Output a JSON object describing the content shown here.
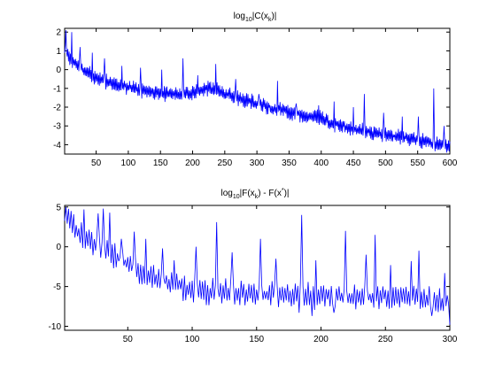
{
  "chart_data": [
    {
      "type": "line",
      "title": {
        "pre": "log",
        "base": "10",
        "mid": "|C(x",
        "idx": "k",
        "post": ")|"
      },
      "xlabel": "",
      "ylabel": "",
      "xlim": [
        1,
        600
      ],
      "ylim": [
        -4.5,
        2.2
      ],
      "xticks": [
        50,
        100,
        150,
        200,
        250,
        300,
        350,
        400,
        450,
        500,
        550,
        600
      ],
      "yticks": [
        2,
        1,
        0,
        -1,
        -2,
        -3,
        -4
      ],
      "grid": false,
      "series": [
        {
          "color": "#0000ff",
          "x": [
            1,
            5,
            10,
            20,
            30,
            50,
            75,
            100,
            125,
            150,
            175,
            200,
            225,
            235,
            250,
            275,
            300,
            325,
            350,
            375,
            400,
            425,
            450,
            475,
            500,
            525,
            550,
            575,
            600
          ],
          "baseline": [
            1.0,
            0.75,
            0.55,
            0.25,
            0.0,
            -0.45,
            -0.75,
            -0.95,
            -1.1,
            -1.25,
            -1.35,
            -1.2,
            -1.0,
            -1.0,
            -1.3,
            -1.55,
            -1.8,
            -2.05,
            -2.25,
            -2.45,
            -2.6,
            -2.95,
            -3.15,
            -3.35,
            -3.45,
            -3.6,
            -3.7,
            -3.95,
            -4.1
          ],
          "spikes": [
            {
              "x": 3,
              "y": 2.1
            },
            {
              "x": 12,
              "y": 2.0
            },
            {
              "x": 25,
              "y": 1.2
            },
            {
              "x": 44,
              "y": 0.9
            },
            {
              "x": 63,
              "y": 0.6
            },
            {
              "x": 90,
              "y": 0.2
            },
            {
              "x": 119,
              "y": 0.1
            },
            {
              "x": 152,
              "y": 0.0
            },
            {
              "x": 185,
              "y": 0.6
            },
            {
              "x": 208,
              "y": -0.3
            },
            {
              "x": 236,
              "y": 0.3
            },
            {
              "x": 267,
              "y": -0.5
            },
            {
              "x": 303,
              "y": -1.3
            },
            {
              "x": 332,
              "y": -0.6
            },
            {
              "x": 361,
              "y": -1.8
            },
            {
              "x": 396,
              "y": -1.9
            },
            {
              "x": 420,
              "y": -1.7
            },
            {
              "x": 450,
              "y": -2.0
            },
            {
              "x": 467,
              "y": -1.3
            },
            {
              "x": 497,
              "y": -2.3
            },
            {
              "x": 526,
              "y": -2.5
            },
            {
              "x": 551,
              "y": -2.5
            },
            {
              "x": 575,
              "y": -1.0
            },
            {
              "x": 591,
              "y": -3.0
            }
          ]
        }
      ]
    },
    {
      "type": "line",
      "title": {
        "pre": "log",
        "base": "10",
        "mid": "|F(x",
        "idx": "k",
        "post2": ") - F(x",
        "sup": "*",
        "post": ")|"
      },
      "xlabel": "",
      "ylabel": "",
      "xlim": [
        1,
        300
      ],
      "ylim": [
        -10.5,
        5.2
      ],
      "xticks": [
        50,
        100,
        150,
        200,
        250,
        300
      ],
      "yticks": [
        5,
        0,
        -5,
        -10
      ],
      "grid": false,
      "series": [
        {
          "color": "#0000ff",
          "x": [
            1,
            5,
            10,
            20,
            30,
            40,
            50,
            60,
            70,
            80,
            90,
            100,
            120,
            150,
            180,
            200,
            220,
            250,
            280,
            300
          ],
          "baseline": [
            4.0,
            3.0,
            2.2,
            1.0,
            -0.2,
            -1.2,
            -2.2,
            -3.2,
            -4.0,
            -4.4,
            -5.0,
            -5.4,
            -5.6,
            -5.8,
            -6.0,
            -6.2,
            -6.2,
            -6.3,
            -6.4,
            -6.8
          ],
          "spikes": [
            {
              "x": 2,
              "y": 5.0
            },
            {
              "x": 6,
              "y": 4.5
            },
            {
              "x": 16,
              "y": 4.7
            },
            {
              "x": 27,
              "y": 4.2
            },
            {
              "x": 31,
              "y": 4.8
            },
            {
              "x": 36,
              "y": 4.3
            },
            {
              "x": 45,
              "y": 1.0
            },
            {
              "x": 55,
              "y": 1.9
            },
            {
              "x": 64,
              "y": 1.0
            },
            {
              "x": 77,
              "y": -0.2
            },
            {
              "x": 86,
              "y": -1.7
            },
            {
              "x": 103,
              "y": 0.0
            },
            {
              "x": 119,
              "y": 3.1
            },
            {
              "x": 131,
              "y": -0.7
            },
            {
              "x": 153,
              "y": 1.0
            },
            {
              "x": 165,
              "y": -1.5
            },
            {
              "x": 185,
              "y": 4.0
            },
            {
              "x": 196,
              "y": -1.7
            },
            {
              "x": 219,
              "y": 2.0
            },
            {
              "x": 235,
              "y": -1.0
            },
            {
              "x": 242,
              "y": 1.5
            },
            {
              "x": 254,
              "y": -2.3
            },
            {
              "x": 270,
              "y": -1.8
            },
            {
              "x": 276,
              "y": -0.5
            },
            {
              "x": 296,
              "y": -3.3
            }
          ],
          "dips": [
            {
              "x": 121,
              "y": -6.3
            },
            {
              "x": 183,
              "y": -8.3
            },
            {
              "x": 193,
              "y": -8.7
            },
            {
              "x": 210,
              "y": -8.3
            },
            {
              "x": 286,
              "y": -8.7
            },
            {
              "x": 300,
              "y": -9.8
            }
          ]
        }
      ]
    }
  ]
}
